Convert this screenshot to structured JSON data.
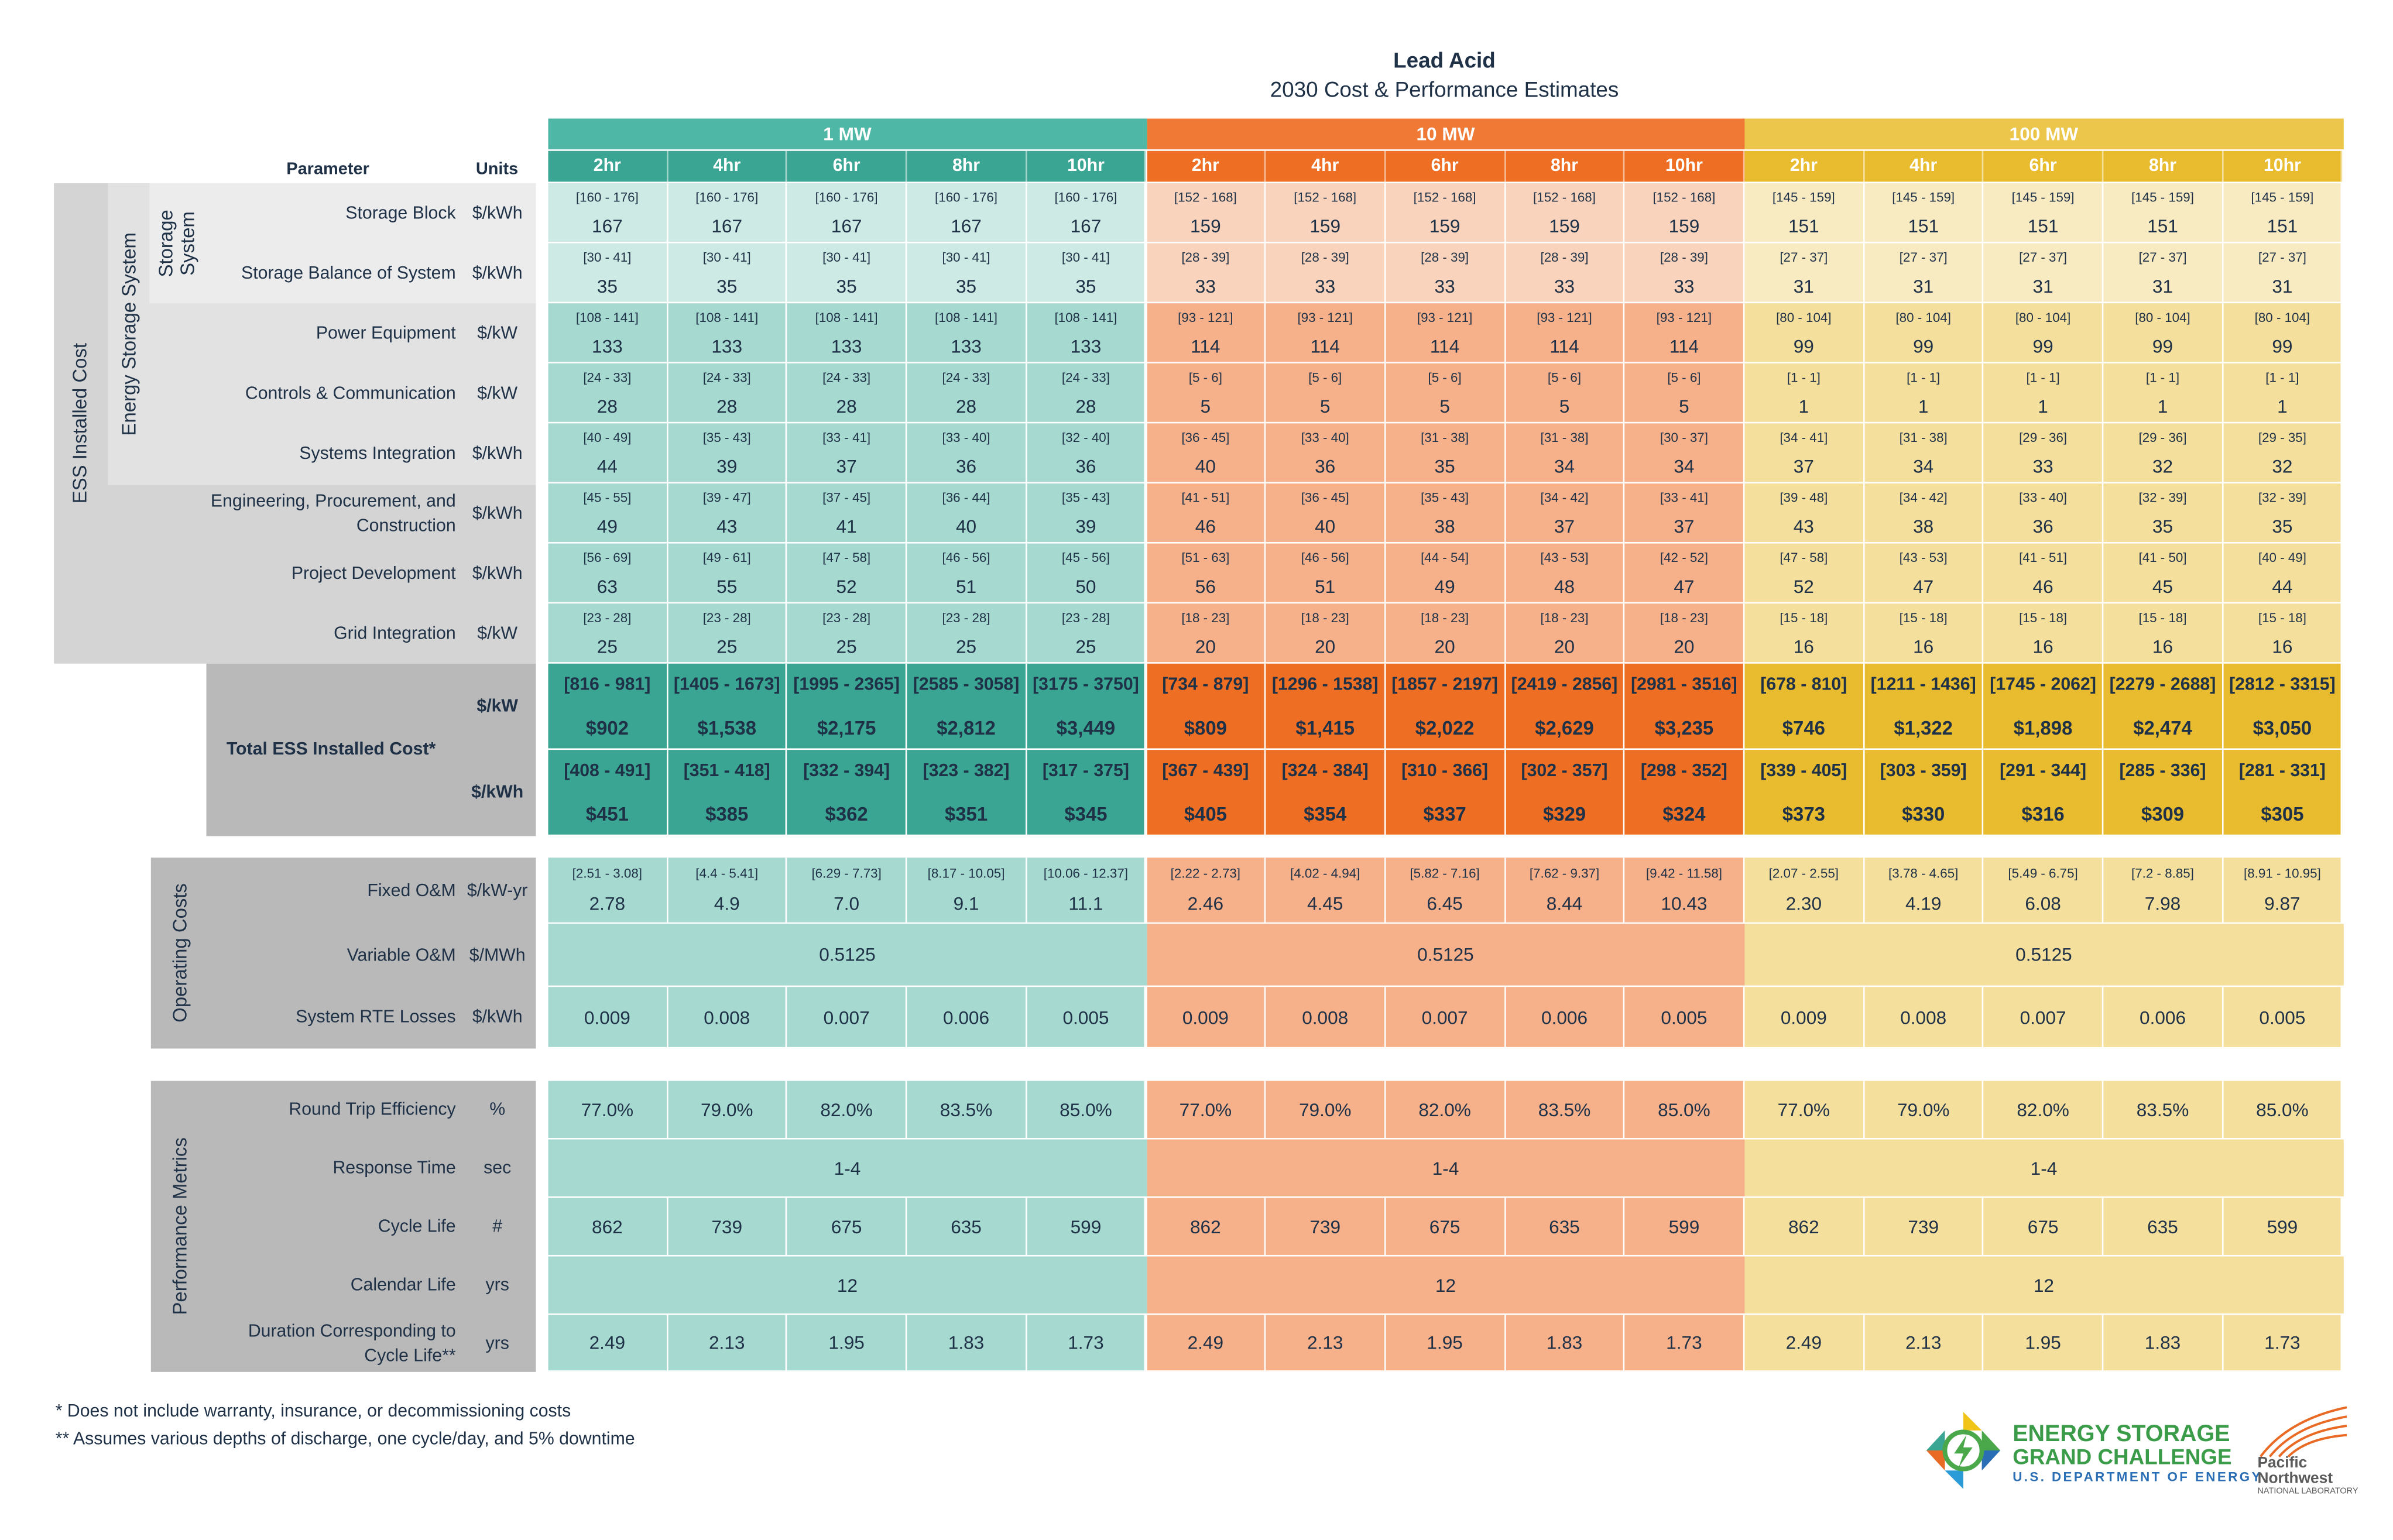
{
  "title": "Lead Acid",
  "subtitle": "2030 Cost & Performance Estimates",
  "header": {
    "parameter": "Parameter",
    "units": "Units"
  },
  "groups": [
    {
      "label": "1 MW",
      "color": "#4fb7a5",
      "light": "#a6d9d0",
      "lighter": "#cdeae4",
      "dark": "#3aa592"
    },
    {
      "label": "10 MW",
      "color": "#f07a35",
      "light": "#f6b08a",
      "lighter": "#f9d3bb",
      "dark": "#ee6f24"
    },
    {
      "label": "100 MW",
      "color": "#ecc64a",
      "light": "#f5df9c",
      "lighter": "#f8ebc2",
      "dark": "#e8bc2e"
    }
  ],
  "durations": [
    "2hr",
    "4hr",
    "6hr",
    "8hr",
    "10hr"
  ],
  "side_labels": {
    "ess_installed_cost": "ESS Installed Cost",
    "energy_storage_system": "Energy Storage System",
    "storage_system": "Storage System",
    "operating_costs": "Operating Costs",
    "performance_metrics": "Performance Metrics",
    "total": "Total ESS Installed Cost*"
  },
  "cost_rows": [
    {
      "label": "Storage Block",
      "unit": "$/kWh",
      "cells": [
        [
          "[160 - 176]",
          "167"
        ],
        [
          "[160 - 176]",
          "167"
        ],
        [
          "[160 - 176]",
          "167"
        ],
        [
          "[160 - 176]",
          "167"
        ],
        [
          "[160 - 176]",
          "167"
        ],
        [
          "[152 - 168]",
          "159"
        ],
        [
          "[152 - 168]",
          "159"
        ],
        [
          "[152 - 168]",
          "159"
        ],
        [
          "[152 - 168]",
          "159"
        ],
        [
          "[152 - 168]",
          "159"
        ],
        [
          "[145 - 159]",
          "151"
        ],
        [
          "[145 - 159]",
          "151"
        ],
        [
          "[145 - 159]",
          "151"
        ],
        [
          "[145 - 159]",
          "151"
        ],
        [
          "[145 - 159]",
          "151"
        ]
      ]
    },
    {
      "label": "Storage Balance of System",
      "unit": "$/kWh",
      "cells": [
        [
          "[30 - 41]",
          "35"
        ],
        [
          "[30 - 41]",
          "35"
        ],
        [
          "[30 - 41]",
          "35"
        ],
        [
          "[30 - 41]",
          "35"
        ],
        [
          "[30 - 41]",
          "35"
        ],
        [
          "[28 - 39]",
          "33"
        ],
        [
          "[28 - 39]",
          "33"
        ],
        [
          "[28 - 39]",
          "33"
        ],
        [
          "[28 - 39]",
          "33"
        ],
        [
          "[28 - 39]",
          "33"
        ],
        [
          "[27 - 37]",
          "31"
        ],
        [
          "[27 - 37]",
          "31"
        ],
        [
          "[27 - 37]",
          "31"
        ],
        [
          "[27 - 37]",
          "31"
        ],
        [
          "[27 - 37]",
          "31"
        ]
      ]
    },
    {
      "label": "Power Equipment",
      "unit": "$/kW",
      "cells": [
        [
          "[108 - 141]",
          "133"
        ],
        [
          "[108 - 141]",
          "133"
        ],
        [
          "[108 - 141]",
          "133"
        ],
        [
          "[108 - 141]",
          "133"
        ],
        [
          "[108 - 141]",
          "133"
        ],
        [
          "[93 - 121]",
          "114"
        ],
        [
          "[93 - 121]",
          "114"
        ],
        [
          "[93 - 121]",
          "114"
        ],
        [
          "[93 - 121]",
          "114"
        ],
        [
          "[93 - 121]",
          "114"
        ],
        [
          "[80 - 104]",
          "99"
        ],
        [
          "[80 - 104]",
          "99"
        ],
        [
          "[80 - 104]",
          "99"
        ],
        [
          "[80 - 104]",
          "99"
        ],
        [
          "[80 - 104]",
          "99"
        ]
      ]
    },
    {
      "label": "Controls & Communication",
      "unit": "$/kW",
      "cells": [
        [
          "[24 - 33]",
          "28"
        ],
        [
          "[24 - 33]",
          "28"
        ],
        [
          "[24 - 33]",
          "28"
        ],
        [
          "[24 - 33]",
          "28"
        ],
        [
          "[24 - 33]",
          "28"
        ],
        [
          "[5 - 6]",
          "5"
        ],
        [
          "[5 - 6]",
          "5"
        ],
        [
          "[5 - 6]",
          "5"
        ],
        [
          "[5 - 6]",
          "5"
        ],
        [
          "[5 - 6]",
          "5"
        ],
        [
          "[1 - 1]",
          "1"
        ],
        [
          "[1 - 1]",
          "1"
        ],
        [
          "[1 - 1]",
          "1"
        ],
        [
          "[1 - 1]",
          "1"
        ],
        [
          "[1 - 1]",
          "1"
        ]
      ]
    },
    {
      "label": "Systems Integration",
      "unit": "$/kWh",
      "cells": [
        [
          "[40 - 49]",
          "44"
        ],
        [
          "[35 - 43]",
          "39"
        ],
        [
          "[33 - 41]",
          "37"
        ],
        [
          "[33 - 40]",
          "36"
        ],
        [
          "[32 - 40]",
          "36"
        ],
        [
          "[36 - 45]",
          "40"
        ],
        [
          "[33 - 40]",
          "36"
        ],
        [
          "[31 - 38]",
          "35"
        ],
        [
          "[31 - 38]",
          "34"
        ],
        [
          "[30 - 37]",
          "34"
        ],
        [
          "[34 - 41]",
          "37"
        ],
        [
          "[31 - 38]",
          "34"
        ],
        [
          "[29 - 36]",
          "33"
        ],
        [
          "[29 - 36]",
          "32"
        ],
        [
          "[29 - 35]",
          "32"
        ]
      ]
    },
    {
      "label": "Engineering, Procurement, and Construction",
      "unit": "$/kWh",
      "cells": [
        [
          "[45 - 55]",
          "49"
        ],
        [
          "[39 - 47]",
          "43"
        ],
        [
          "[37 - 45]",
          "41"
        ],
        [
          "[36 - 44]",
          "40"
        ],
        [
          "[35 - 43]",
          "39"
        ],
        [
          "[41 - 51]",
          "46"
        ],
        [
          "[36 - 45]",
          "40"
        ],
        [
          "[35 - 43]",
          "38"
        ],
        [
          "[34 - 42]",
          "37"
        ],
        [
          "[33 - 41]",
          "37"
        ],
        [
          "[39 - 48]",
          "43"
        ],
        [
          "[34 - 42]",
          "38"
        ],
        [
          "[33 - 40]",
          "36"
        ],
        [
          "[32 - 39]",
          "35"
        ],
        [
          "[32 - 39]",
          "35"
        ]
      ]
    },
    {
      "label": "Project Development",
      "unit": "$/kWh",
      "cells": [
        [
          "[56 - 69]",
          "63"
        ],
        [
          "[49 - 61]",
          "55"
        ],
        [
          "[47 - 58]",
          "52"
        ],
        [
          "[46 - 56]",
          "51"
        ],
        [
          "[45 - 56]",
          "50"
        ],
        [
          "[51 - 63]",
          "56"
        ],
        [
          "[46 - 56]",
          "51"
        ],
        [
          "[44 - 54]",
          "49"
        ],
        [
          "[43 - 53]",
          "48"
        ],
        [
          "[42 - 52]",
          "47"
        ],
        [
          "[47 - 58]",
          "52"
        ],
        [
          "[43 - 53]",
          "47"
        ],
        [
          "[41 - 51]",
          "46"
        ],
        [
          "[41 - 50]",
          "45"
        ],
        [
          "[40 - 49]",
          "44"
        ]
      ]
    },
    {
      "label": "Grid Integration",
      "unit": "$/kW",
      "cells": [
        [
          "[23 - 28]",
          "25"
        ],
        [
          "[23 - 28]",
          "25"
        ],
        [
          "[23 - 28]",
          "25"
        ],
        [
          "[23 - 28]",
          "25"
        ],
        [
          "[23 - 28]",
          "25"
        ],
        [
          "[18 - 23]",
          "20"
        ],
        [
          "[18 - 23]",
          "20"
        ],
        [
          "[18 - 23]",
          "20"
        ],
        [
          "[18 - 23]",
          "20"
        ],
        [
          "[18 - 23]",
          "20"
        ],
        [
          "[15 - 18]",
          "16"
        ],
        [
          "[15 - 18]",
          "16"
        ],
        [
          "[15 - 18]",
          "16"
        ],
        [
          "[15 - 18]",
          "16"
        ],
        [
          "[15 - 18]",
          "16"
        ]
      ]
    }
  ],
  "total_rows": [
    {
      "unit": "$/kW",
      "cells": [
        [
          "[816 - 981]",
          "$902"
        ],
        [
          "[1405 - 1673]",
          "$1,538"
        ],
        [
          "[1995 - 2365]",
          "$2,175"
        ],
        [
          "[2585 - 3058]",
          "$2,812"
        ],
        [
          "[3175 - 3750]",
          "$3,449"
        ],
        [
          "[734 - 879]",
          "$809"
        ],
        [
          "[1296 - 1538]",
          "$1,415"
        ],
        [
          "[1857 - 2197]",
          "$2,022"
        ],
        [
          "[2419 - 2856]",
          "$2,629"
        ],
        [
          "[2981 - 3516]",
          "$3,235"
        ],
        [
          "[678 - 810]",
          "$746"
        ],
        [
          "[1211 - 1436]",
          "$1,322"
        ],
        [
          "[1745 - 2062]",
          "$1,898"
        ],
        [
          "[2279 - 2688]",
          "$2,474"
        ],
        [
          "[2812 - 3315]",
          "$3,050"
        ]
      ]
    },
    {
      "unit": "$/kWh",
      "cells": [
        [
          "[408 - 491]",
          "$451"
        ],
        [
          "[351 - 418]",
          "$385"
        ],
        [
          "[332 - 394]",
          "$362"
        ],
        [
          "[323 - 382]",
          "$351"
        ],
        [
          "[317 - 375]",
          "$345"
        ],
        [
          "[367 - 439]",
          "$405"
        ],
        [
          "[324 - 384]",
          "$354"
        ],
        [
          "[310 - 366]",
          "$337"
        ],
        [
          "[302 - 357]",
          "$329"
        ],
        [
          "[298 - 352]",
          "$324"
        ],
        [
          "[339 - 405]",
          "$373"
        ],
        [
          "[303 - 359]",
          "$330"
        ],
        [
          "[291 - 344]",
          "$316"
        ],
        [
          "[285 - 336]",
          "$309"
        ],
        [
          "[281 - 331]",
          "$305"
        ]
      ]
    }
  ],
  "operating_rows": [
    {
      "label": "Fixed O&M",
      "unit": "$/kW-yr",
      "type": "ranged",
      "cells": [
        [
          "[2.51 - 3.08]",
          "2.78"
        ],
        [
          "[4.4 - 5.41]",
          "4.9"
        ],
        [
          "[6.29 - 7.73]",
          "7.0"
        ],
        [
          "[8.17 - 10.05]",
          "9.1"
        ],
        [
          "[10.06 - 12.37]",
          "11.1"
        ],
        [
          "[2.22 - 2.73]",
          "2.46"
        ],
        [
          "[4.02 - 4.94]",
          "4.45"
        ],
        [
          "[5.82 - 7.16]",
          "6.45"
        ],
        [
          "[7.62 - 9.37]",
          "8.44"
        ],
        [
          "[9.42 - 11.58]",
          "10.43"
        ],
        [
          "[2.07 - 2.55]",
          "2.30"
        ],
        [
          "[3.78 - 4.65]",
          "4.19"
        ],
        [
          "[5.49 - 6.75]",
          "6.08"
        ],
        [
          "[7.2 - 8.85]",
          "7.98"
        ],
        [
          "[8.91 - 10.95]",
          "9.87"
        ]
      ]
    },
    {
      "label": "Variable O&M",
      "unit": "$/MWh",
      "type": "merged",
      "groups": [
        "0.5125",
        "0.5125",
        "0.5125"
      ]
    },
    {
      "label": "System RTE Losses",
      "unit": "$/kWh",
      "type": "single",
      "cells": [
        "0.009",
        "0.008",
        "0.007",
        "0.006",
        "0.005",
        "0.009",
        "0.008",
        "0.007",
        "0.006",
        "0.005",
        "0.009",
        "0.008",
        "0.007",
        "0.006",
        "0.005"
      ]
    }
  ],
  "performance_rows": [
    {
      "label": "Round Trip Efficiency",
      "unit": "%",
      "type": "single",
      "cells": [
        "77.0%",
        "79.0%",
        "82.0%",
        "83.5%",
        "85.0%",
        "77.0%",
        "79.0%",
        "82.0%",
        "83.5%",
        "85.0%",
        "77.0%",
        "79.0%",
        "82.0%",
        "83.5%",
        "85.0%"
      ]
    },
    {
      "label": "Response Time",
      "unit": "sec",
      "type": "merged",
      "groups": [
        "1-4",
        "1-4",
        "1-4"
      ]
    },
    {
      "label": "Cycle Life",
      "unit": "#",
      "type": "single",
      "cells": [
        "862",
        "739",
        "675",
        "635",
        "599",
        "862",
        "739",
        "675",
        "635",
        "599",
        "862",
        "739",
        "675",
        "635",
        "599"
      ]
    },
    {
      "label": "Calendar Life",
      "unit": "yrs",
      "type": "merged",
      "groups": [
        "12",
        "12",
        "12"
      ]
    },
    {
      "label": "Duration Corresponding to Cycle Life**",
      "unit": "yrs",
      "type": "single",
      "cells": [
        "2.49",
        "2.13",
        "1.95",
        "1.83",
        "1.73",
        "2.49",
        "2.13",
        "1.95",
        "1.83",
        "1.73",
        "2.49",
        "2.13",
        "1.95",
        "1.83",
        "1.73"
      ]
    }
  ],
  "footnotes": [
    "* Does not include warranty, insurance, or decommissioning costs",
    "** Assumes various depths of discharge, one cycle/day, and 5% downtime"
  ],
  "logos": {
    "esgc_line1": "ENERGY STORAGE",
    "esgc_line2": "GRAND CHALLENGE",
    "esgc_line3": "U.S. DEPARTMENT OF ENERGY",
    "pnnl_line1": "Pacific",
    "pnnl_line2": "Northwest",
    "pnnl_line3": "NATIONAL LABORATORY"
  }
}
